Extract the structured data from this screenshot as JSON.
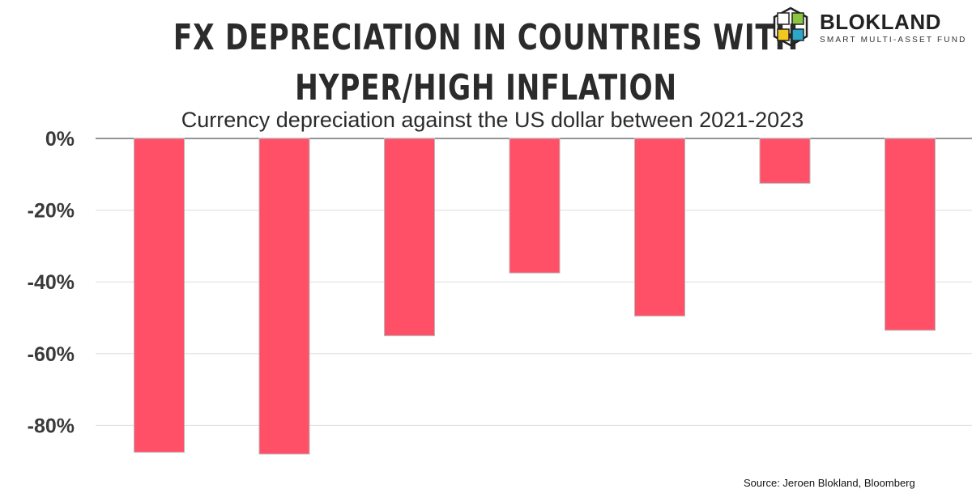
{
  "title": "FX DEPRECIATION IN COUNTRIES WITH HYPER/HIGH INFLATION",
  "title_lines": [
    "FX DEPRECIATION IN COUNTRIES WITH",
    "HYPER/HIGH INFLATION"
  ],
  "logo": {
    "name": "BLOKLAND",
    "tagline": "SMART MULTI-ASSET FUND",
    "icon": "cube-logo-icon"
  },
  "source": "Source: Jeroen Blokland, Bloomberg",
  "colors": {
    "bar": "#FF5068",
    "grid": "#dddddd",
    "axis": "#555555",
    "text": "#333333"
  },
  "chart_data": {
    "type": "bar",
    "title": "FX DEPRECIATION IN COUNTRIES WITH HYPER/HIGH INFLATION",
    "subtitle": "Currency depreciation against the US dollar between 2021-2023",
    "xlabel": "",
    "ylabel": "",
    "categories": [
      "",
      "",
      "",
      "",
      "",
      "",
      ""
    ],
    "values": [
      -87.5,
      -88,
      -55,
      -37.5,
      -49.5,
      -12.5,
      -53.5
    ],
    "ylim": [
      -90,
      0
    ],
    "yticks": [
      0,
      -20,
      -40,
      -60,
      -80
    ],
    "ytick_labels": [
      "0%",
      "-20%",
      "-40%",
      "-60%",
      "-80%"
    ],
    "grid": true,
    "legend": "none"
  }
}
